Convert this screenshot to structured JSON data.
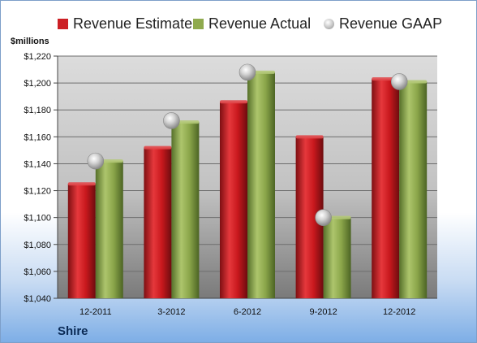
{
  "chart_data": {
    "type": "bar",
    "unit_label": "$millions",
    "company": "Shire",
    "categories": [
      "12-2011",
      "3-2012",
      "6-2012",
      "9-2012",
      "12-2012"
    ],
    "series": [
      {
        "name": "Revenue Estimate",
        "type": "bar",
        "color": "#cc1f24",
        "values": [
          1125,
          1152,
          1186,
          1160,
          1203
        ]
      },
      {
        "name": "Revenue Actual",
        "type": "bar",
        "color": "#8faa4e",
        "values": [
          1142,
          1171,
          1208,
          1100,
          1201
        ]
      },
      {
        "name": "Revenue GAAP",
        "type": "scatter",
        "color": "#b9b9b9",
        "values": [
          1142,
          1172,
          1208,
          1100,
          1201
        ]
      }
    ],
    "ylim": [
      1040,
      1220
    ],
    "yticks": [
      "$1,040",
      "$1,060",
      "$1,080",
      "$1,100",
      "$1,120",
      "$1,140",
      "$1,160",
      "$1,180",
      "$1,200",
      "$1,220"
    ],
    "ytick_values": [
      1040,
      1060,
      1080,
      1100,
      1120,
      1140,
      1160,
      1180,
      1200,
      1220
    ],
    "grid": true,
    "legend_position": "top"
  }
}
